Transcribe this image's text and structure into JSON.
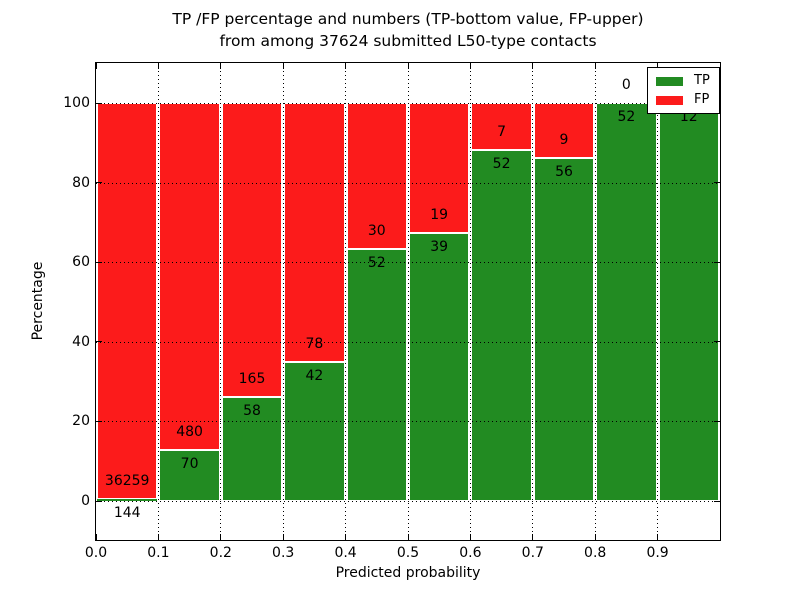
{
  "figure": {
    "title_line1": "TP /FP percentage and numbers (TP-bottom value, FP-upper)",
    "title_line2": "from among 37624 submitted L50-type contacts"
  },
  "chart_data": {
    "type": "bar",
    "subtype": "stacked-percentage-histogram",
    "title": "TP /FP percentage and numbers (TP-bottom value, FP-upper) from among 37624 submitted L50-type contacts",
    "xlabel": "Predicted probability",
    "ylabel": "Percentage",
    "total_contacts": 37624,
    "bin_width": 0.1,
    "x_tick_labels": [
      "0.0",
      "0.1",
      "0.2",
      "0.3",
      "0.4",
      "0.5",
      "0.6",
      "0.7",
      "0.8",
      "0.9"
    ],
    "y_ticks": [
      0,
      20,
      40,
      60,
      80,
      100
    ],
    "xlim": [
      0.0,
      1.0
    ],
    "ylim": [
      -10,
      110
    ],
    "grid": {
      "style": "dotted",
      "color": "#000000",
      "on_top_of_bars": true
    },
    "series": [
      {
        "name": "TP",
        "position": "bottom",
        "color": "#228b22",
        "values": [
          144,
          70,
          58,
          42,
          52,
          39,
          52,
          56,
          52,
          12
        ]
      },
      {
        "name": "FP",
        "position": "top",
        "color": "#fc1b1b",
        "values": [
          36259,
          480,
          165,
          78,
          30,
          19,
          7,
          9,
          0,
          0
        ]
      }
    ],
    "tp_percent_of_bin": [
      0.4,
      12.7,
      26.0,
      35.0,
      63.4,
      67.2,
      88.1,
      86.2,
      100.0,
      100.0
    ],
    "legend": {
      "position": "upper-right",
      "entries": [
        {
          "label": "TP",
          "color": "#228b22"
        },
        {
          "label": "FP",
          "color": "#fc1b1b"
        }
      ]
    },
    "annotation_rule": "TP count printed below the TP/FP boundary, FP count printed above it"
  }
}
